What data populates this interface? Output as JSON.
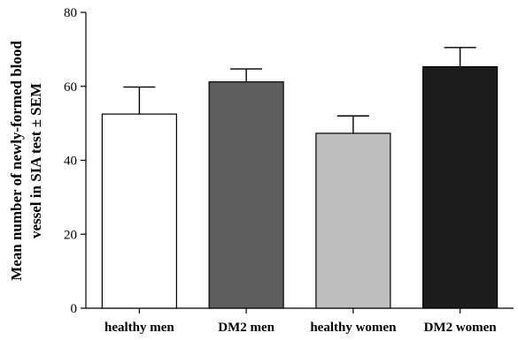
{
  "chart_data": {
    "type": "bar",
    "categories": [
      "healthy men",
      "DM2 men",
      "healthy women",
      "DM2 women"
    ],
    "values": [
      52.5,
      61.2,
      47.3,
      65.3
    ],
    "errors": [
      7.3,
      3.5,
      4.7,
      5.2
    ],
    "bar_colors": [
      "#ffffff",
      "#5e5e5e",
      "#bdbdbd",
      "#1c1c1c"
    ],
    "title": "",
    "xlabel": "",
    "ylabel_lines": [
      "Mean number of newly-formed blood",
      "vessel in SIA test ± SEM"
    ],
    "ylim": [
      0,
      80
    ],
    "yticks": [
      0,
      20,
      40,
      60,
      80
    ],
    "grid": false,
    "legend": "none"
  }
}
